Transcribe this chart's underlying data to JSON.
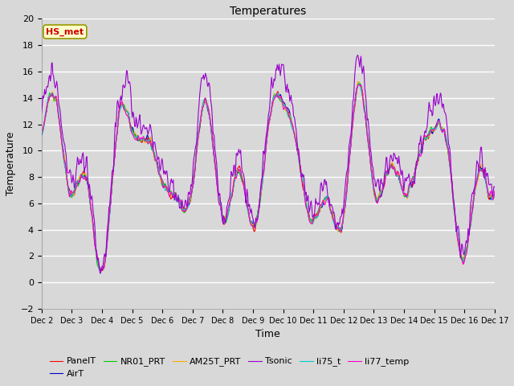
{
  "title": "Temperatures",
  "xlabel": "Time",
  "ylabel": "Temperature",
  "ylim": [
    -2,
    20
  ],
  "annotation_text": "HS_met",
  "annotation_color": "#cc0000",
  "annotation_bg": "#ffffcc",
  "annotation_border": "#999900",
  "bg_color": "#d8d8d8",
  "fig_bg": "#d8d8d8",
  "xtick_labels": [
    "Dec 2",
    "Dec 3",
    "Dec 4",
    "Dec 5",
    "Dec 6",
    "Dec 7",
    "Dec 8",
    "Dec 9",
    "Dec 10",
    "Dec 11",
    "Dec 12",
    "Dec 13",
    "Dec 14",
    "Dec 15",
    "Dec 16",
    "Dec 17"
  ],
  "series": {
    "PanelT": {
      "color": "#ff0000",
      "lw": 0.8
    },
    "AirT": {
      "color": "#0000cc",
      "lw": 0.8
    },
    "NR01_PRT": {
      "color": "#00cc00",
      "lw": 0.8
    },
    "AM25T_PRT": {
      "color": "#ffaa00",
      "lw": 0.8
    },
    "Tsonic": {
      "color": "#9900cc",
      "lw": 0.8
    },
    "li75_t": {
      "color": "#00cccc",
      "lw": 0.8
    },
    "li77_temp": {
      "color": "#ff00cc",
      "lw": 0.8
    }
  },
  "seed": 42
}
